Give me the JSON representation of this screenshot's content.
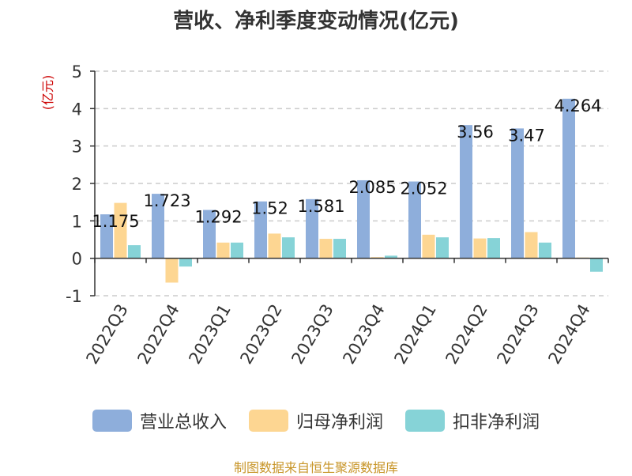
{
  "chart_data": {
    "type": "bar",
    "title": "营收、净利季度变动情况(亿元)",
    "ylabel": "(亿元)",
    "xlabel": "",
    "ylim": [
      -1,
      5
    ],
    "yticks": [
      -1,
      0,
      1,
      2,
      3,
      4,
      5
    ],
    "grid": true,
    "legend_position": "bottom",
    "categories": [
      "2022Q3",
      "2022Q4",
      "2023Q1",
      "2023Q2",
      "2023Q3",
      "2023Q4",
      "2024Q1",
      "2024Q2",
      "2024Q3",
      "2024Q4"
    ],
    "series": [
      {
        "name": "营业总收入",
        "color": "#8eaedb",
        "values": [
          1.175,
          1.723,
          1.292,
          1.52,
          1.581,
          2.085,
          2.052,
          3.56,
          3.47,
          4.264
        ],
        "data_labels": [
          "1.175",
          "1.723",
          "1.292",
          "1.52",
          "1.581",
          "2.085",
          "2.052",
          "3.56",
          "3.47",
          "4.264"
        ]
      },
      {
        "name": "归母净利润",
        "color": "#fdd692",
        "values": [
          1.48,
          -0.65,
          0.42,
          0.66,
          0.52,
          0.03,
          0.63,
          0.53,
          0.7,
          0.02
        ]
      },
      {
        "name": "扣非净利润",
        "color": "#86d3d7",
        "values": [
          0.35,
          -0.22,
          0.42,
          0.56,
          0.52,
          0.07,
          0.56,
          0.54,
          0.42,
          -0.36
        ]
      }
    ]
  },
  "source": "制图数据来自恒生聚源数据库"
}
